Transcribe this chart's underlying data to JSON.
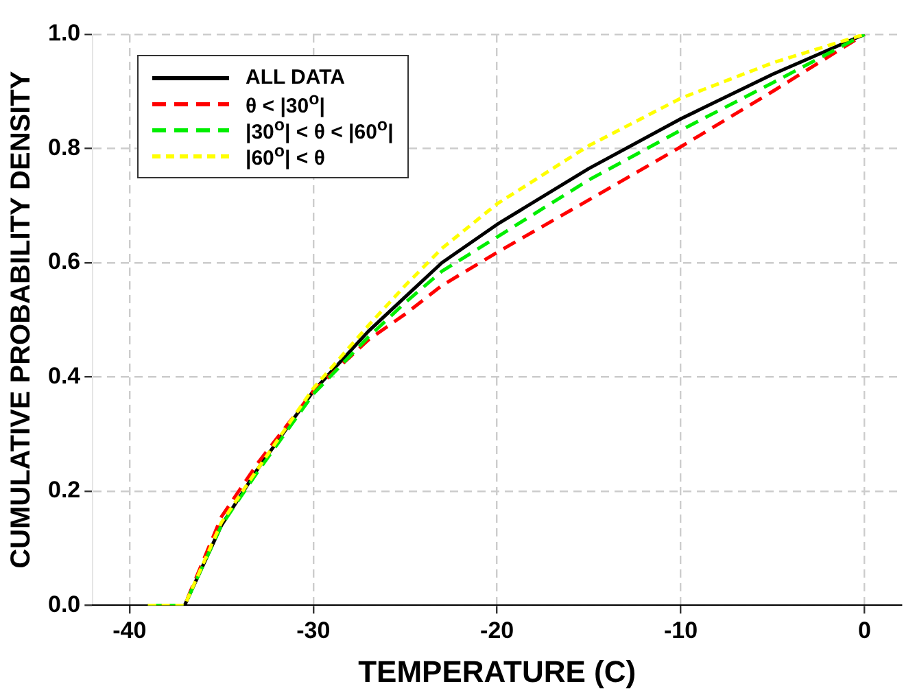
{
  "chart_data": {
    "type": "line",
    "xlabel": "TEMPERATURE (C)",
    "ylabel": "CUMULATIVE PROBABILITY DENSITY",
    "xlim": [
      -42,
      2
    ],
    "xticks": [
      -40,
      -30,
      -20,
      -10,
      0
    ],
    "ylim": [
      0,
      1
    ],
    "yticks": [
      {
        "value": 0,
        "label": "0.0"
      },
      0.2,
      0.4,
      0.6,
      0.8,
      {
        "value": 1,
        "label": "1.0"
      }
    ],
    "grid": true,
    "legend": "top left",
    "marker": "none",
    "series": [
      {
        "name": "ALL DATA",
        "color": "#000000",
        "line_style": "solid",
        "x": [
          -39,
          -37,
          -35,
          -33,
          -30,
          -27,
          -25,
          -23,
          -20,
          -15,
          -10,
          -5,
          0
        ],
        "values": [
          0,
          0,
          0.14,
          0.24,
          0.375,
          0.48,
          0.54,
          0.6,
          0.667,
          0.765,
          0.852,
          0.93,
          1
        ]
      },
      {
        "name": "θ  < |30$^{o}$|",
        "color": "#ff0000",
        "line_style": "dashed",
        "x": [
          -39,
          -37,
          -35,
          -33,
          -30,
          -27,
          -25,
          -23,
          -20,
          -15,
          -10,
          -5,
          0
        ],
        "values": [
          0,
          0,
          0.155,
          0.25,
          0.375,
          0.465,
          0.51,
          0.56,
          0.618,
          0.71,
          0.803,
          0.9,
          1
        ]
      },
      {
        "name": "|30$^{o}$| < θ < |60$^{o}$|",
        "color": "#00ee00",
        "line_style": "dashed",
        "x": [
          -39,
          -37,
          -35,
          -33,
          -30,
          -27,
          -25,
          -23,
          -20,
          -15,
          -10,
          -5,
          0
        ],
        "values": [
          0,
          0,
          0.14,
          0.235,
          0.37,
          0.47,
          0.53,
          0.585,
          0.645,
          0.745,
          0.832,
          0.915,
          1
        ]
      },
      {
        "name": "|60$^{o}$| < θ",
        "color": "#ffff00",
        "line_style": "dotted",
        "x": [
          -39,
          -37,
          -35,
          -33,
          -30,
          -27,
          -25,
          -23,
          -20,
          -15,
          -10,
          -5,
          0
        ],
        "values": [
          0,
          0,
          0.145,
          0.24,
          0.38,
          0.49,
          0.56,
          0.625,
          0.703,
          0.805,
          0.888,
          0.95,
          1
        ]
      }
    ]
  }
}
